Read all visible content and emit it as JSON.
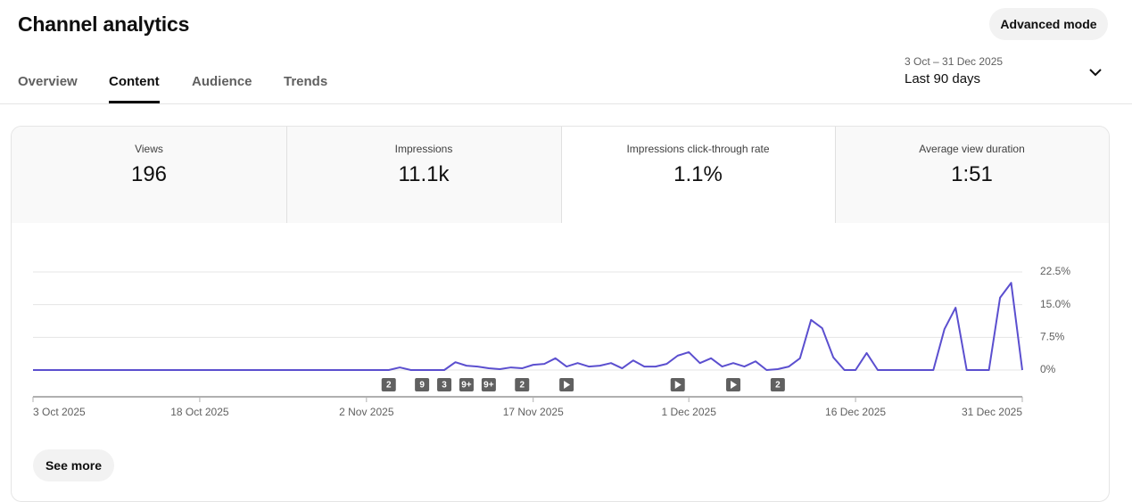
{
  "header": {
    "title": "Channel analytics",
    "button": "Advanced mode"
  },
  "tabs": {
    "items": [
      "Overview",
      "Content",
      "Audience",
      "Trends"
    ],
    "active": 1
  },
  "date_range": {
    "range": "3 Oct – 31 Dec 2025",
    "label": "Last 90 days"
  },
  "metrics": {
    "items": [
      {
        "label": "Views",
        "value": "196"
      },
      {
        "label": "Impressions",
        "value": "11.1k"
      },
      {
        "label": "Impressions click-through rate",
        "value": "1.1%"
      },
      {
        "label": "Average view duration",
        "value": "1:51"
      }
    ],
    "selected": 2
  },
  "chart_data": {
    "type": "line",
    "color": "#5b4fcf",
    "x": [
      "2025-10-03",
      "2025-10-04",
      "2025-10-05",
      "2025-10-06",
      "2025-10-07",
      "2025-10-08",
      "2025-10-09",
      "2025-10-10",
      "2025-10-11",
      "2025-10-12",
      "2025-10-13",
      "2025-10-14",
      "2025-10-15",
      "2025-10-16",
      "2025-10-17",
      "2025-10-18",
      "2025-10-19",
      "2025-10-20",
      "2025-10-21",
      "2025-10-22",
      "2025-10-23",
      "2025-10-24",
      "2025-10-25",
      "2025-10-26",
      "2025-10-27",
      "2025-10-28",
      "2025-10-29",
      "2025-10-30",
      "2025-10-31",
      "2025-11-01",
      "2025-11-02",
      "2025-11-03",
      "2025-11-04",
      "2025-11-05",
      "2025-11-06",
      "2025-11-07",
      "2025-11-08",
      "2025-11-09",
      "2025-11-10",
      "2025-11-11",
      "2025-11-12",
      "2025-11-13",
      "2025-11-14",
      "2025-11-15",
      "2025-11-16",
      "2025-11-17",
      "2025-11-18",
      "2025-11-19",
      "2025-11-20",
      "2025-11-21",
      "2025-11-22",
      "2025-11-23",
      "2025-11-24",
      "2025-11-25",
      "2025-11-26",
      "2025-11-27",
      "2025-11-28",
      "2025-11-29",
      "2025-11-30",
      "2025-12-01",
      "2025-12-02",
      "2025-12-03",
      "2025-12-04",
      "2025-12-05",
      "2025-12-06",
      "2025-12-07",
      "2025-12-08",
      "2025-12-09",
      "2025-12-10",
      "2025-12-11",
      "2025-12-12",
      "2025-12-13",
      "2025-12-14",
      "2025-12-15",
      "2025-12-16",
      "2025-12-17",
      "2025-12-18",
      "2025-12-19",
      "2025-12-20",
      "2025-12-21",
      "2025-12-22",
      "2025-12-23",
      "2025-12-24",
      "2025-12-25",
      "2025-12-26",
      "2025-12-27",
      "2025-12-28",
      "2025-12-29",
      "2025-12-30",
      "2025-12-31"
    ],
    "values": [
      0,
      0,
      0,
      0,
      0,
      0,
      0,
      0,
      0,
      0,
      0,
      0,
      0,
      0,
      0,
      0,
      0,
      0,
      0,
      0,
      0,
      0,
      0,
      0,
      0,
      0,
      0,
      0,
      0,
      0,
      0,
      0,
      0,
      0.6,
      0,
      0,
      0,
      0,
      1.8,
      1.0,
      0.8,
      0.4,
      0.2,
      0.6,
      0.4,
      1.2,
      1.4,
      2.7,
      0.8,
      1.6,
      0.8,
      1.0,
      1.6,
      0.4,
      2.2,
      0.8,
      0.8,
      1.4,
      3.3,
      4.1,
      1.6,
      2.7,
      0.8,
      1.6,
      0.8,
      2.0,
      0,
      0.2,
      0.8,
      2.7,
      11.5,
      9.6,
      2.9,
      0,
      0,
      3.9,
      0,
      0,
      0,
      0,
      0,
      0,
      9.4,
      14.3,
      0,
      0,
      0,
      16.6,
      20.0,
      0
    ],
    "xlim": [
      "2025-10-03",
      "2025-12-31"
    ],
    "xticks": [
      {
        "value": "2025-10-03",
        "label": "3 Oct 2025"
      },
      {
        "value": "2025-10-18",
        "label": "18 Oct 2025"
      },
      {
        "value": "2025-11-02",
        "label": "2 Nov 2025"
      },
      {
        "value": "2025-11-17",
        "label": "17 Nov 2025"
      },
      {
        "value": "2025-12-01",
        "label": "1 Dec 2025"
      },
      {
        "value": "2025-12-16",
        "label": "16 Dec 2025"
      },
      {
        "value": "2025-12-31",
        "label": "31 Dec 2025"
      }
    ],
    "ylim": [
      0,
      22.5
    ],
    "yticks": [
      {
        "value": 0,
        "label": "0%"
      },
      {
        "value": 7.5,
        "label": "7.5%"
      },
      {
        "value": 15,
        "label": "15.0%"
      },
      {
        "value": 22.5,
        "label": "22.5%"
      }
    ],
    "grid": true,
    "annotations": [
      {
        "x": "2025-11-04",
        "label": "2"
      },
      {
        "x": "2025-11-07",
        "label": "9"
      },
      {
        "x": "2025-11-09",
        "label": "3"
      },
      {
        "x": "2025-11-11",
        "label": "9+"
      },
      {
        "x": "2025-11-13",
        "label": "9+"
      },
      {
        "x": "2025-11-16",
        "label": "2"
      },
      {
        "x": "2025-11-20"
      },
      {
        "x": "2025-11-30"
      },
      {
        "x": "2025-12-05"
      },
      {
        "x": "2025-12-09",
        "label": "2"
      }
    ]
  },
  "see_more": "See more"
}
